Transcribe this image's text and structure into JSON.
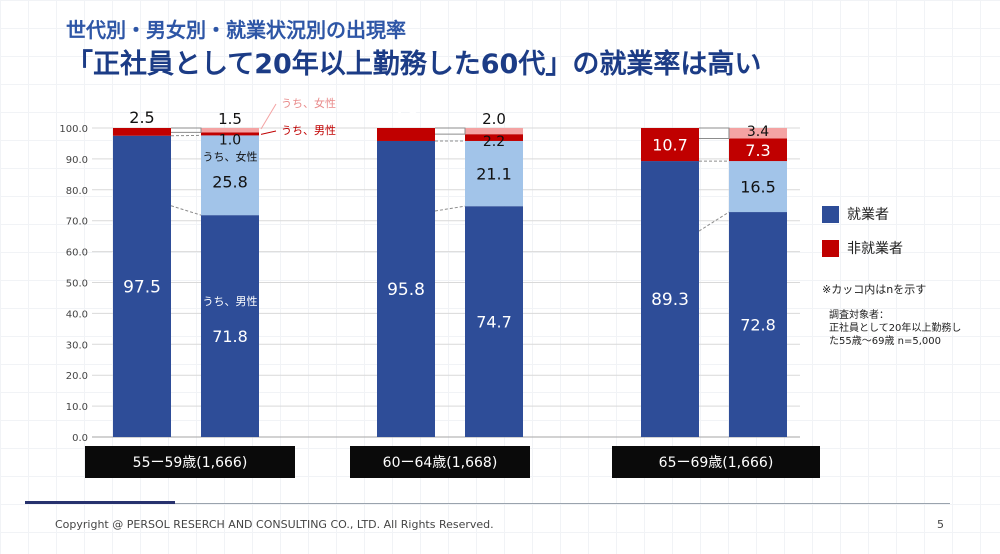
{
  "header": {
    "subtitle": "世代別・男女別・就業状況別の出現率",
    "title": "「正社員として20年以上勤務した60代」の就業率は高い"
  },
  "chart_data": {
    "type": "bar",
    "stacked": true,
    "ylim": [
      0,
      100
    ],
    "yticks": [
      "100.0",
      "90.0",
      "80.0",
      "70.0",
      "60.0",
      "50.0",
      "40.0",
      "30.0",
      "20.0",
      "10.0",
      "0.0"
    ],
    "groups": [
      {
        "label": "55ー59歳(1,666)",
        "total": {
          "employed": 97.5,
          "not_employed": 2.5
        },
        "breakdown": {
          "male_employed": 71.8,
          "female_employed": 25.8,
          "male_not_employed": 1.0,
          "female_not_employed": 1.5
        }
      },
      {
        "label": "60ー64歳(1,668)",
        "total": {
          "employed": 95.8,
          "not_employed": 4.2
        },
        "breakdown": {
          "male_employed": 74.7,
          "female_employed": 21.1,
          "male_not_employed": 2.2,
          "female_not_employed": 2.0
        }
      },
      {
        "label": "65ー69歳(1,666)",
        "total": {
          "employed": 89.3,
          "not_employed": 10.7
        },
        "breakdown": {
          "male_employed": 72.8,
          "female_employed": 16.5,
          "male_not_employed": 7.3,
          "female_not_employed": 3.4
        }
      }
    ],
    "annotations": {
      "female_red": "うち、女性",
      "male_red": "うち、男性",
      "female_blue": "うち、女性",
      "male_blue": "うち、男性"
    },
    "legend": [
      {
        "name": "就業者",
        "color": "#2e4d98"
      },
      {
        "name": "非就業者",
        "color": "#c00000"
      }
    ],
    "colors": {
      "employed": "#2e4d98",
      "employed_female": "#a2c4e9",
      "not_employed": "#c00000",
      "not_employed_female": "#f4a3a3"
    }
  },
  "notes": {
    "n_note": "※カッコ内はnを示す",
    "survey_title": "調査対象者：",
    "survey_line1": "正社員として20年以上勤務し",
    "survey_line2": "た55歳～69歳 n=5,000"
  },
  "footer": {
    "copyright": "Copyright @ PERSOL RESERCH AND CONSULTING CO., LTD. All Rights Reserved.",
    "page": "5"
  }
}
